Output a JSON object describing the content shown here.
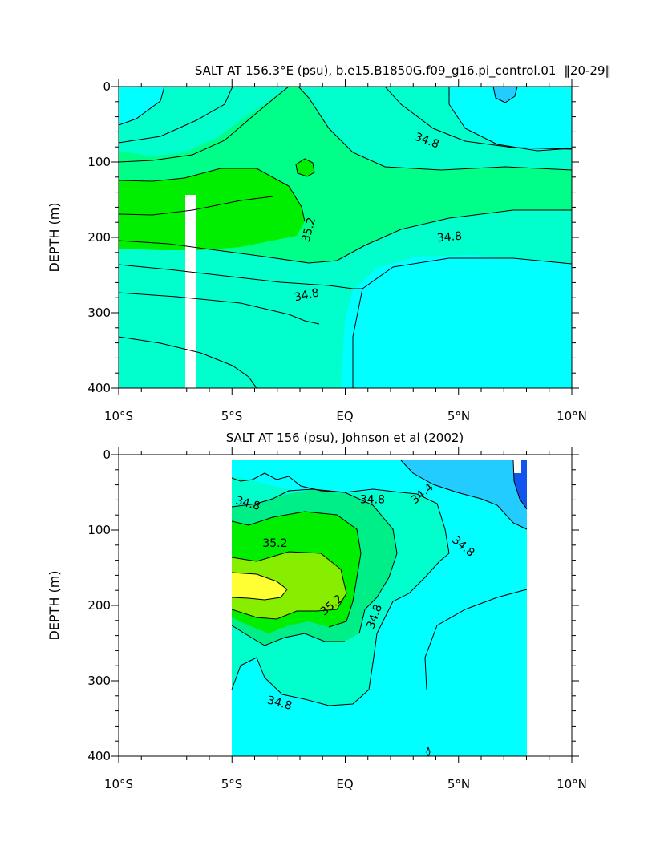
{
  "chart_data": [
    {
      "type": "heatmap",
      "subtype": "filled-contour-section",
      "title": "SALT AT 156.3°E (psu), b.e15.B1850G.f09_g16.pi_control.01  20-29 ",
      "title_text": "SALT AT 156.3°E (psu), b.e15.B1850G.f09_g16.pi_control.01",
      "title_years": "20-29",
      "xlabel": "",
      "ylabel": "DEPTH (m)",
      "xlim": [
        -10,
        10
      ],
      "ylim": [
        400,
        0
      ],
      "x_tick_labels": [
        "10°S",
        "5°S",
        "EQ",
        "5°N",
        "10°N"
      ],
      "y_tick_labels": [
        "0",
        "100",
        "200",
        "300",
        "400"
      ],
      "contour_levels": [
        34.4,
        34.6,
        34.8,
        35.0,
        35.2,
        35.4
      ],
      "contour_labels": [
        {
          "text": "34.8",
          "lat": 3.6,
          "depth": 72,
          "angle": 20
        },
        {
          "text": "35.2",
          "lat": -1.6,
          "depth": 190,
          "angle": -75
        },
        {
          "text": "34.8",
          "lat": 4.6,
          "depth": 200,
          "angle": -5
        },
        {
          "text": "34.8",
          "lat": -1.7,
          "depth": 277,
          "angle": -12
        }
      ],
      "missing_column": {
        "lat_from": -5.9,
        "lat_to": -5.5,
        "depth_from": 148,
        "depth_to": 400
      },
      "regions": [
        {
          "level": "34.6-34.8",
          "color": "#00FFCC",
          "desc": "upper / surface band"
        },
        {
          "level": "35.0-35.2",
          "color": "#00FF88",
          "desc": "main tongue"
        },
        {
          "level": ">35.2",
          "color": "#00EE00",
          "desc": "salinity maximum core"
        },
        {
          "level": "<34.6",
          "color": "#00FFFF",
          "desc": "deep / northern water"
        },
        {
          "level": "<34.4",
          "color": "#22CCFF",
          "desc": "surface patch near 7°N"
        }
      ]
    },
    {
      "type": "heatmap",
      "subtype": "filled-contour-section",
      "title": "SALT AT 156 (psu), Johnson et al (2002)",
      "xlabel": "",
      "ylabel": "DEPTH (m)",
      "xlim": [
        -10,
        10
      ],
      "ylim": [
        400,
        0
      ],
      "data_lat_range": [
        -5,
        8
      ],
      "x_tick_labels": [
        "10°S",
        "5°S",
        "EQ",
        "5°N",
        "10°N"
      ],
      "y_tick_labels": [
        "0",
        "100",
        "200",
        "300",
        "400"
      ],
      "contour_levels": [
        34.2,
        34.4,
        34.6,
        34.8,
        35.0,
        35.2,
        35.4
      ],
      "contour_labels": [
        {
          "text": "34.8",
          "lat": -4.3,
          "depth": 65,
          "angle": 15
        },
        {
          "text": "34.8",
          "lat": 1.2,
          "depth": 60,
          "angle": 0
        },
        {
          "text": "34.4",
          "lat": 3.4,
          "depth": 52,
          "angle": -40
        },
        {
          "text": "35.2",
          "lat": -3.1,
          "depth": 118,
          "angle": 0
        },
        {
          "text": "34.8",
          "lat": 5.2,
          "depth": 122,
          "angle": 40
        },
        {
          "text": "35.2",
          "lat": -0.6,
          "depth": 200,
          "angle": -40
        },
        {
          "text": "34.8",
          "lat": 1.3,
          "depth": 215,
          "angle": -70
        },
        {
          "text": "34.8",
          "lat": -2.9,
          "depth": 330,
          "angle": 15
        }
      ],
      "regions": [
        {
          "level": "<34.6",
          "color": "#00FFFF",
          "desc": "background"
        },
        {
          "level": "34.6-35.0",
          "color": "#00FFCC",
          "desc": "southern tongue"
        },
        {
          "level": "35.0-35.2",
          "color": "#00EE88",
          "desc": "mid core"
        },
        {
          "level": "35.2-35.4",
          "color": "#00EE00",
          "desc": "core"
        },
        {
          "level": "35.4-35.6",
          "color": "#88EE00",
          "desc": "inner core"
        },
        {
          "level": ">35.6",
          "color": "#FFFF33",
          "desc": "salinity maximum"
        },
        {
          "level": "<34.4",
          "color": "#22CCFF",
          "desc": "northern surface"
        },
        {
          "level": "<34.0",
          "color": "#1155EE",
          "desc": "fresh pool near 8°N"
        }
      ]
    }
  ]
}
